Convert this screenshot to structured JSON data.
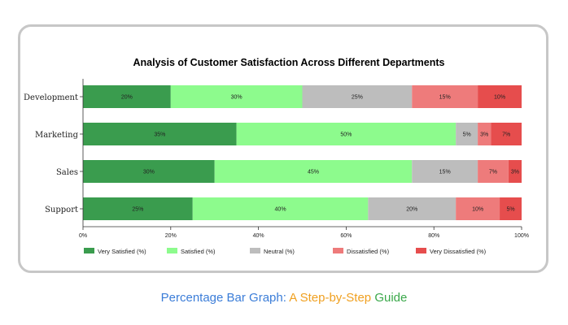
{
  "chart_data": {
    "type": "bar",
    "orientation": "horizontal",
    "stacked": true,
    "title": "Analysis of Customer Satisfaction Across Different Departments",
    "categories": [
      "Development",
      "Marketing",
      "Sales",
      "Support"
    ],
    "series": [
      {
        "name": "Very Satisfied (%)",
        "color": "#3a9c4e",
        "values": [
          20,
          35,
          30,
          25
        ],
        "labels": [
          "20%",
          "35%",
          "30%",
          "25%"
        ]
      },
      {
        "name": "Satisfied (%)",
        "color": "#8dfb8d",
        "values": [
          30,
          50,
          45,
          40
        ],
        "labels": [
          "30%",
          "50%",
          "45%",
          "40%"
        ]
      },
      {
        "name": "Neutral (%)",
        "color": "#bdbdbd",
        "values": [
          25,
          5,
          15,
          20
        ],
        "labels": [
          "25%",
          "5%",
          "15%",
          "20%"
        ]
      },
      {
        "name": "Dissatisfied (%)",
        "color": "#ee7b7b",
        "values": [
          15,
          3,
          7,
          10
        ],
        "labels": [
          "15%",
          "3%",
          "7%",
          "10%"
        ]
      },
      {
        "name": "Very Dissatisfied (%)",
        "color": "#e64d4d",
        "values": [
          10,
          7,
          3,
          5
        ],
        "labels": [
          "10%",
          "7%",
          "3%",
          "5%"
        ]
      }
    ],
    "xlim": [
      0,
      100
    ],
    "xticks": [
      0,
      20,
      40,
      60,
      80,
      100
    ],
    "xtick_labels": [
      "0%",
      "20%",
      "40%",
      "60%",
      "80%",
      "100%"
    ],
    "xlabel": "",
    "ylabel": "",
    "legend_position": "bottom",
    "grid": false
  },
  "caption": {
    "part1": "Percentage Bar Graph: ",
    "part2": "A Step-by-Step ",
    "part3": "Guide"
  }
}
